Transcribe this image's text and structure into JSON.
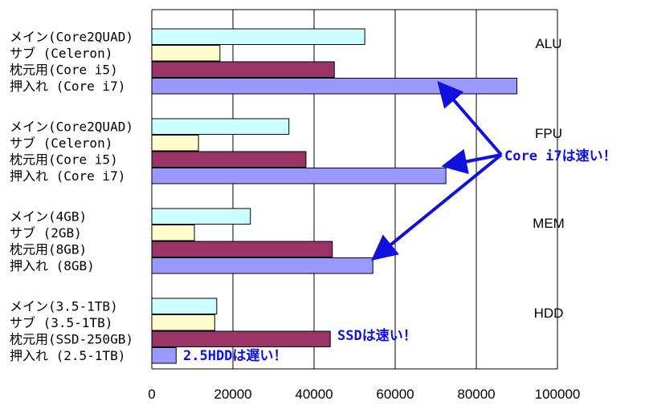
{
  "chart_data": {
    "type": "bar",
    "orientation": "horizontal",
    "grid": true,
    "xlim": [
      0,
      100000
    ],
    "x_ticks": [
      "0",
      "20000",
      "40000",
      "60000",
      "80000",
      "100000"
    ],
    "x_tick_values": [
      0,
      20000,
      40000,
      60000,
      80000,
      100000
    ],
    "series_colors": [
      "#ccffff",
      "#ffffcc",
      "#993366",
      "#9999ff"
    ],
    "groups": [
      {
        "name": "ALU",
        "bars": [
          {
            "label": "メイン(Core2QUAD)",
            "value": 52500
          },
          {
            "label": "サブ (Celeron)",
            "value": 16800
          },
          {
            "label": "枕元用(Core i5)",
            "value": 45000
          },
          {
            "label": "押入れ (Core i7)",
            "value": 90000
          }
        ]
      },
      {
        "name": "FPU",
        "bars": [
          {
            "label": "メイン(Core2QUAD)",
            "value": 33800
          },
          {
            "label": "サブ (Celeron)",
            "value": 11500
          },
          {
            "label": "枕元用(Core i5)",
            "value": 38000
          },
          {
            "label": "押入れ (Core i7)",
            "value": 72500
          }
        ]
      },
      {
        "name": "MEM",
        "bars": [
          {
            "label": "メイン(4GB)",
            "value": 24300
          },
          {
            "label": "サブ (2GB)",
            "value": 10500
          },
          {
            "label": "枕元用(8GB)",
            "value": 44500
          },
          {
            "label": "押入れ (8GB)",
            "value": 54500
          }
        ]
      },
      {
        "name": "HDD",
        "bars": [
          {
            "label": "メイン(3.5-1TB)",
            "value": 16000
          },
          {
            "label": "サブ (3.5-1TB)",
            "value": 15500
          },
          {
            "label": "枕元用(SSD-250GB)",
            "value": 44000
          },
          {
            "label": "押入れ (2.5-1TB)",
            "value": 6000
          }
        ]
      }
    ],
    "annotations": {
      "core_i7": "Core i7は速い！",
      "ssd": "SSDは速い！",
      "hdd25": "2.5HDDは遅い！"
    },
    "arrow_color": "#1010e0"
  }
}
